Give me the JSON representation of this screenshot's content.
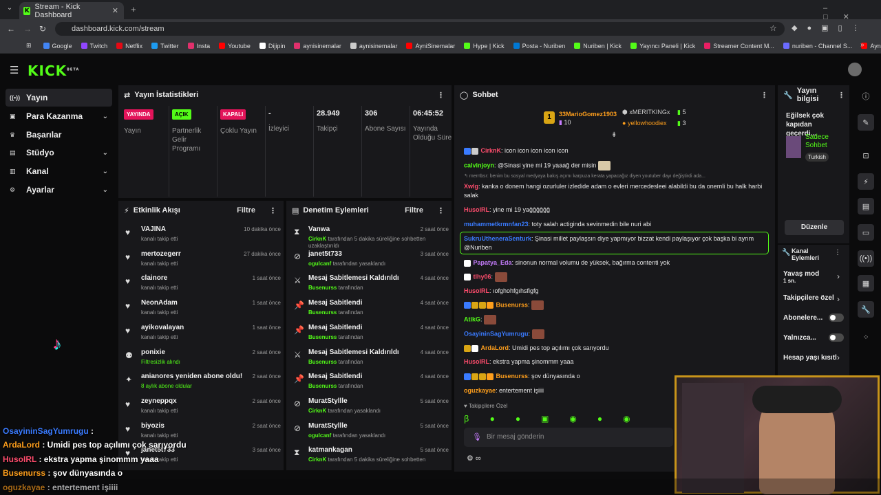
{
  "browser": {
    "tab_title": "Stream - Kick Dashboard",
    "url": "dashboard.kick.com/stream",
    "bookmarks": [
      {
        "label": "Google",
        "color": "#4285f4"
      },
      {
        "label": "Twitch",
        "color": "#9146ff"
      },
      {
        "label": "Netflix",
        "color": "#e50914"
      },
      {
        "label": "Twitter",
        "color": "#1d9bf0"
      },
      {
        "label": "Insta",
        "color": "#e1306c"
      },
      {
        "label": "Youtube",
        "color": "#ff0000"
      },
      {
        "label": "Dijipin",
        "color": "#ffffff"
      },
      {
        "label": "aynisinemalar",
        "color": "#e1306c"
      },
      {
        "label": "aynisinemalar",
        "color": "#cccccc"
      },
      {
        "label": "AyniSinemalar",
        "color": "#ff0000"
      },
      {
        "label": "Hype | Kick",
        "color": "#53fc18"
      },
      {
        "label": "Posta - Nuriben",
        "color": "#0078d4"
      },
      {
        "label": "Nuriben | Kick",
        "color": "#53fc18"
      },
      {
        "label": "Yayıncı Paneli | Kick",
        "color": "#53fc18"
      },
      {
        "label": "Streamer Content M...",
        "color": "#e91e63"
      },
      {
        "label": "nuriben - Channel S...",
        "color": "#6b6bff"
      },
      {
        "label": "Aynı Sinemalar - Ça...",
        "color": "#ff0000"
      }
    ]
  },
  "app": {
    "logo": "KICK",
    "logo_beta": "BETA",
    "accent": "#53fc18"
  },
  "sidebar": {
    "items": [
      {
        "label": "Yayın",
        "icon": "broadcast-icon",
        "active": true
      },
      {
        "label": "Para Kazanma",
        "icon": "wallet-icon"
      },
      {
        "label": "Başarılar",
        "icon": "trophy-icon"
      },
      {
        "label": "Stüdyo",
        "icon": "studio-icon"
      },
      {
        "label": "Kanal",
        "icon": "channel-icon"
      },
      {
        "label": "Ayarlar",
        "icon": "gear-icon"
      }
    ]
  },
  "stats": {
    "title": "Yayın İstatistikleri",
    "cols": [
      {
        "value": "YAYINDA",
        "label": "Yayın",
        "kind": "badge",
        "color": "#e3145a"
      },
      {
        "value": "AÇIK",
        "label": "Partnerlik Gelir Programı",
        "kind": "badge",
        "color": "#53fc18"
      },
      {
        "value": "KAPALI",
        "label": "Çoklu Yayın",
        "kind": "badge",
        "color": "#e3145a"
      },
      {
        "value": "-",
        "label": "İzleyici",
        "kind": "num"
      },
      {
        "value": "28.949",
        "label": "Takipçi",
        "kind": "num"
      },
      {
        "value": "306",
        "label": "Abone Sayısı",
        "kind": "num"
      },
      {
        "value": "06:45:52",
        "label": "Yayında Olduğu Süre",
        "kind": "num"
      }
    ]
  },
  "activity": {
    "title": "Etkinlik Akışı",
    "filter": "Filtre",
    "items": [
      {
        "name": "VAJINA",
        "sub": "kanalı takip etti",
        "time": "10 dakika önce"
      },
      {
        "name": "mertozegerr",
        "sub": "kanalı takip etti",
        "time": "27 dakika önce"
      },
      {
        "name": "clainore",
        "sub": "kanalı takip etti",
        "time": "1 saat önce"
      },
      {
        "name": "NeonAdam",
        "sub": "kanalı takip etti",
        "time": "1 saat önce"
      },
      {
        "name": "ayikovalayan",
        "sub": "kanalı takip etti",
        "time": "1 saat önce"
      },
      {
        "name": "ponixie",
        "sub": "Filtresizlik alındı",
        "time": "2 saat önce"
      },
      {
        "name": "anianores yeniden abone oldu!",
        "sub": "8 aylık abone oldular",
        "time": "2 saat önce"
      },
      {
        "name": "zeyneppqx",
        "sub": "kanalı takip etti",
        "time": "2 saat önce"
      },
      {
        "name": "biyozis",
        "sub": "kanalı takip etti",
        "time": "2 saat önce"
      },
      {
        "name": "janet5t733",
        "sub": "kanalı takip etti",
        "time": "3 saat önce"
      }
    ]
  },
  "modlog": {
    "title": "Denetim Eylemleri",
    "filter": "Filtre",
    "items": [
      {
        "name": "Vanwa",
        "by": "CirknK",
        "rest": " tarafından 5 dakika süreliğine sohbetten uzaklaştırıldı",
        "time": "2 saat önce",
        "icon": "hourglass-icon"
      },
      {
        "name": "janet5t733",
        "by": "ogulcanf",
        "rest": " tarafından yasaklandı",
        "time": "3 saat önce",
        "icon": "ban-icon"
      },
      {
        "name": "Mesaj Sabitlemesi Kaldırıldı",
        "by": "Busenurss",
        "rest": " tarafından",
        "time": "4 saat önce",
        "icon": "unpin-icon"
      },
      {
        "name": "Mesaj Sabitlendi",
        "by": "Busenurss",
        "rest": " tarafından",
        "time": "4 saat önce",
        "icon": "pin-icon"
      },
      {
        "name": "Mesaj Sabitlendi",
        "by": "Busenurss",
        "rest": " tarafından",
        "time": "4 saat önce",
        "icon": "pin-icon"
      },
      {
        "name": "Mesaj Sabitlemesi Kaldırıldı",
        "by": "Busenurss",
        "rest": " tarafından",
        "time": "4 saat önce",
        "icon": "unpin-icon"
      },
      {
        "name": "Mesaj Sabitlendi",
        "by": "Busenurss",
        "rest": " tarafından",
        "time": "4 saat önce",
        "icon": "pin-icon"
      },
      {
        "name": "MuratStyllle",
        "by": "CirknK",
        "rest": " tarafından yasaklandı",
        "time": "5 saat önce",
        "icon": "ban-icon"
      },
      {
        "name": "MuratStyllle",
        "by": "ogulcanf",
        "rest": " tarafından yasaklandı",
        "time": "5 saat önce",
        "icon": "ban-icon"
      },
      {
        "name": "katmankagan",
        "by": "CirknK",
        "rest": " tarafından 5 dakika süreliğine sohbetten",
        "time": "5 saat önce",
        "icon": "hourglass-icon"
      }
    ]
  },
  "chat": {
    "title": "Sohbet",
    "top": [
      {
        "name": "33MarioGomez1903",
        "count": "10"
      },
      {
        "name": "xMERITKINGx",
        "count": "5"
      },
      {
        "name": "yellowhoodiex",
        "count": "3"
      }
    ],
    "rank_badge": "1",
    "reply_preview": "merrtbsr: benim bu sosyal medyaya bakış açımı karpuza kerata yapacağız diyen youtuber dayı değiştirdi ada...",
    "messages": [
      {
        "user": "CirknK",
        "color": "#ff4d6d",
        "text": ": icon icon icon icon icon"
      },
      {
        "user": "calvinjoyn",
        "color": "#53fc18",
        "text": ": @Sinasi yine mi 19 yaaağ der misin"
      },
      {
        "user": "Xwlg",
        "color": "#ff4d6d",
        "text": ": kanka o donem hangi ozurluler izledide adam o evleri mercedesleei alabildi bu da onemli bu halk harbi salak"
      },
      {
        "user": "HusoIRL",
        "color": "#ff4d6d",
        "text": ": yine mi 19 yaĝĝĝĝĝĝ"
      },
      {
        "user": "muhammetkrmnfan23",
        "color": "#3a7bff",
        "text": ": toty salah actiginda sevinmedin bile nuri abi"
      },
      {
        "user": "SukruUtheneraSenturk",
        "color": "#3a7bff",
        "text": ": Şinasi millet paylaşsın diye yapmıyor bizzat kendi paylaşıyor çok başka bi ayrım @Nuriben"
      },
      {
        "user": "Papatya_Eda",
        "color": "#c77dff",
        "text": ": sinonun normal volumu de yüksek, bağırma contenti yok"
      },
      {
        "user": "tlhy06",
        "color": "#ff4d6d",
        "text": ":"
      },
      {
        "user": "HusoIRL",
        "color": "#ff4d6d",
        "text": ": ıofghohfgıhsfigfg"
      },
      {
        "user": "Busenurss",
        "color": "#ff9f1c",
        "text": ":"
      },
      {
        "user": "AtikG",
        "color": "#53fc18",
        "text": ":"
      },
      {
        "user": "OsayininSagYumrugu",
        "color": "#3a7bff",
        "text": ":"
      },
      {
        "user": "ArdaLord",
        "color": "#ff9f1c",
        "text": ": Umidi pes top açılımı çok sarıyordu"
      },
      {
        "user": "HusoIRL",
        "color": "#ff4d6d",
        "text": ": ekstra yapma şinommm yaaa"
      },
      {
        "user": "Busenurss",
        "color": "#ff9f1c",
        "text": ": şov dünyasında o"
      },
      {
        "user": "oguzkayae",
        "color": "#ff9f1c",
        "text": ": entertement işiiii"
      }
    ],
    "followers_only": "Takipçilere Özel",
    "placeholder": "Bir mesaj gönderin"
  },
  "streaminfo": {
    "title": "Yayın bilgisi",
    "stream_title": "Eğilsek çok kapıdan geçerdi...",
    "category": "Sadece Sohbet",
    "language": "Turkish",
    "edit": "Düzenle"
  },
  "channel_actions": {
    "title": "Kanal Eylemleri",
    "slow_mode": "Yavaş mod",
    "slow_value": "1 sn.",
    "followers": "Takipçilere özel",
    "subs": "Abonelere...",
    "only": "Yalnızca...",
    "age": "Hesap yaşı kısıtl"
  },
  "overlay": {
    "lines": [
      {
        "user": "OsayininSagYumrugu",
        "color": "#3a7bff",
        "text": " :"
      },
      {
        "user": "ArdaLord",
        "color": "#ff9f1c",
        "text": " : Umidi pes top açılımı çok sarıyordu"
      },
      {
        "user": "HusoIRL",
        "color": "#ff4d6d",
        "text": " : ekstra yapma şinommm yaaa"
      },
      {
        "user": "Busenurss",
        "color": "#ff9f1c",
        "text": " : şov dünyasında o"
      },
      {
        "user": "oguzkayae",
        "color": "#ff9f1c",
        "text": " : entertement işiiii"
      }
    ]
  }
}
